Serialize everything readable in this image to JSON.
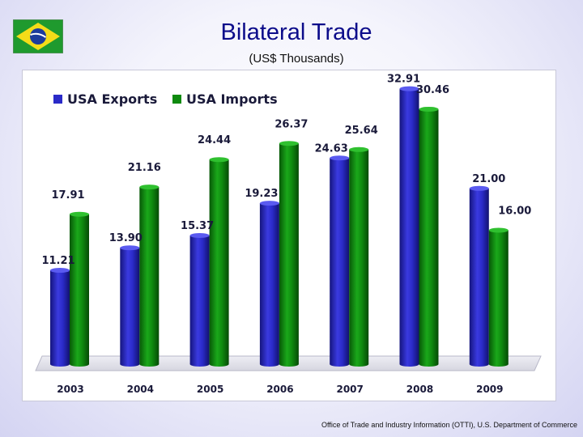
{
  "header": {
    "title": "Bilateral Trade",
    "subtitle": "(US$ Thousands)",
    "flag_icon": "brazil-flag-icon"
  },
  "footer": {
    "source": "Office of Trade and Industry Information (OTTI), U.S. Department of Commerce"
  },
  "chart_data": {
    "type": "bar",
    "categories": [
      "2003",
      "2004",
      "2005",
      "2006",
      "2007",
      "2008",
      "2009"
    ],
    "series": [
      {
        "name": "USA Exports",
        "color": "#2a2ac8",
        "values": [
          11.21,
          13.9,
          15.37,
          19.23,
          24.63,
          32.91,
          21.0
        ],
        "labels": [
          "11.21",
          "13.90",
          "15.37",
          "19.23",
          "24.63",
          "32.91",
          "21.00"
        ]
      },
      {
        "name": "USA Imports",
        "color": "#0f8a0f",
        "values": [
          17.91,
          21.16,
          24.44,
          26.37,
          25.64,
          30.46,
          16.0
        ],
        "labels": [
          "17.91",
          "21.16",
          "24.44",
          "26.37",
          "25.64",
          "30.46",
          "16.00"
        ]
      }
    ],
    "ylim": [
      0,
      35
    ],
    "grid": false,
    "legend": "top-left"
  }
}
